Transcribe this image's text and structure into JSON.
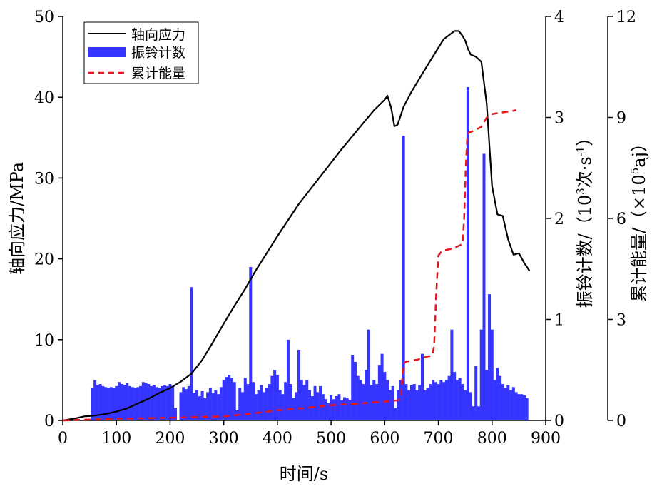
{
  "chart_data": {
    "type": "bar+line",
    "xlabel": "时间/s",
    "ylabel_left": "轴向应力/MPa",
    "ylabel_right1_main": "振铃计数/（10",
    "ylabel_right1_sup1": "3",
    "ylabel_right1_mid": "次·s",
    "ylabel_right1_sup2": "-1",
    "ylabel_right1_end": "）",
    "ylabel_right2_main": "累计能量/（×10",
    "ylabel_right2_sup": "5",
    "ylabel_right2_end": "aj）",
    "xlim": [
      0,
      900
    ],
    "ylim_left": [
      0,
      50
    ],
    "ylim_right1": [
      0,
      4
    ],
    "ylim_right2": [
      0,
      12
    ],
    "x_ticks": [
      "0",
      "100",
      "200",
      "300",
      "400",
      "500",
      "600",
      "700",
      "800",
      "900"
    ],
    "y_left_ticks": [
      "0",
      "10",
      "20",
      "30",
      "40",
      "50"
    ],
    "y_right1_ticks": [
      "0",
      "1",
      "2",
      "3",
      "4"
    ],
    "y_right2_ticks": [
      "0",
      "3",
      "6",
      "9",
      "12"
    ],
    "legend": {
      "position": "top-left",
      "entries": [
        {
          "label": "轴向应力",
          "style": "line",
          "color": "#000000"
        },
        {
          "label": "振铃计数",
          "style": "bar",
          "color": "#3535ff"
        },
        {
          "label": "累计能量",
          "style": "dashed",
          "color": "#e8141b"
        }
      ]
    },
    "colors": {
      "stress": "#000000",
      "bars": "#3535ff",
      "energy": "#e8141b"
    },
    "bar_width": 4,
    "series": [
      {
        "name": "轴向应力",
        "axis": "left",
        "x": [
          0,
          20,
          40,
          60,
          80,
          100,
          120,
          140,
          160,
          180,
          200,
          220,
          240,
          260,
          280,
          300,
          320,
          340,
          360,
          380,
          400,
          420,
          440,
          460,
          480,
          500,
          520,
          540,
          560,
          580,
          600,
          605,
          612,
          618,
          624,
          635,
          650,
          680,
          710,
          730,
          738,
          745,
          750,
          755,
          760,
          770,
          780,
          790,
          800,
          810,
          820,
          830,
          840,
          850,
          860,
          870
        ],
        "values": [
          0,
          0.2,
          0.5,
          0.6,
          0.8,
          1.1,
          1.5,
          2.1,
          2.7,
          3.4,
          4.0,
          4.8,
          5.8,
          7.5,
          9.7,
          12.0,
          14.2,
          16.3,
          18.6,
          20.7,
          22.8,
          24.8,
          26.8,
          28.5,
          30.2,
          31.9,
          33.6,
          35.2,
          36.8,
          38.4,
          39.7,
          40.2,
          38.7,
          36.4,
          36.6,
          38.8,
          40.7,
          44.0,
          47.2,
          48.2,
          48.2,
          47.6,
          47.0,
          46.0,
          45.3,
          45.0,
          44.4,
          39.2,
          29.0,
          25.5,
          25.3,
          22.4,
          20.5,
          20.7,
          19.5,
          18.5
        ]
      },
      {
        "name": "振铃计数",
        "axis": "right1",
        "x": [
          55,
          60,
          65,
          70,
          75,
          80,
          85,
          90,
          95,
          100,
          105,
          110,
          115,
          120,
          125,
          130,
          135,
          140,
          145,
          150,
          155,
          160,
          165,
          170,
          175,
          180,
          185,
          190,
          195,
          200,
          205,
          210,
          220,
          225,
          230,
          235,
          240,
          245,
          250,
          255,
          260,
          265,
          270,
          275,
          280,
          285,
          290,
          295,
          300,
          305,
          310,
          315,
          320,
          325,
          330,
          335,
          340,
          345,
          350,
          355,
          360,
          365,
          370,
          375,
          380,
          385,
          390,
          395,
          400,
          405,
          410,
          415,
          420,
          425,
          430,
          435,
          440,
          445,
          450,
          455,
          460,
          465,
          470,
          475,
          480,
          485,
          490,
          495,
          500,
          505,
          510,
          515,
          520,
          525,
          530,
          535,
          540,
          545,
          550,
          555,
          560,
          565,
          570,
          575,
          580,
          585,
          590,
          595,
          600,
          605,
          610,
          615,
          620,
          625,
          630,
          635,
          640,
          645,
          650,
          655,
          660,
          665,
          670,
          675,
          680,
          685,
          690,
          695,
          700,
          705,
          710,
          715,
          720,
          725,
          730,
          735,
          740,
          745,
          750,
          755,
          760,
          765,
          770,
          775,
          780,
          785,
          790,
          795,
          800,
          805,
          810,
          815,
          820,
          825,
          830,
          835,
          840,
          845,
          850,
          855,
          860,
          865
        ],
        "values": [
          0.32,
          0.4,
          0.35,
          0.36,
          0.34,
          0.33,
          0.32,
          0.33,
          0.32,
          0.34,
          0.38,
          0.36,
          0.35,
          0.37,
          0.34,
          0.33,
          0.32,
          0.33,
          0.34,
          0.38,
          0.37,
          0.36,
          0.34,
          0.35,
          0.33,
          0.32,
          0.34,
          0.35,
          0.34,
          0.36,
          0.34,
          0.12,
          0.28,
          0.33,
          0.31,
          0.34,
          1.32,
          0.27,
          0.3,
          0.24,
          0.29,
          0.22,
          0.28,
          0.32,
          0.27,
          0.3,
          0.26,
          0.33,
          0.4,
          0.43,
          0.45,
          0.42,
          0.38,
          0.1,
          0.32,
          0.28,
          0.42,
          0.36,
          1.52,
          0.38,
          0.26,
          0.3,
          0.35,
          0.28,
          0.32,
          0.36,
          0.44,
          0.5,
          0.45,
          0.3,
          0.26,
          0.38,
          0.8,
          0.36,
          0.22,
          0.28,
          0.7,
          0.4,
          0.35,
          0.4,
          0.3,
          0.24,
          0.34,
          0.28,
          0.34,
          0.26,
          0.21,
          0.17,
          0.25,
          0.21,
          0.24,
          0.26,
          0.2,
          0.23,
          0.22,
          0.2,
          0.65,
          0.58,
          0.44,
          0.4,
          0.36,
          0.5,
          0.9,
          0.35,
          0.4,
          0.36,
          0.55,
          0.66,
          0.48,
          0.4,
          0.3,
          0.34,
          0.12,
          0.3,
          0.4,
          2.82,
          0.36,
          0.3,
          0.35,
          0.36,
          0.3,
          0.35,
          0.66,
          0.3,
          0.32,
          0.36,
          0.4,
          0.38,
          0.36,
          0.4,
          0.38,
          0.4,
          0.44,
          0.9,
          0.48,
          0.4,
          0.42,
          0.36,
          0.3,
          3.3,
          0.28,
          0.14,
          0.54,
          0.14,
          0.9,
          2.64,
          0.5,
          1.25,
          0.9,
          0.4,
          0.52,
          0.44,
          0.36,
          0.32,
          0.35,
          0.3,
          0.33,
          0.28,
          0.26,
          0.26,
          0.25,
          0.22
        ]
      },
      {
        "name": "累计能量",
        "axis": "right2",
        "x": [
          0,
          100,
          200,
          300,
          350,
          400,
          450,
          500,
          550,
          600,
          625,
          630,
          633,
          636,
          640,
          645,
          650,
          660,
          670,
          680,
          688,
          692,
          696,
          700,
          705,
          710,
          725,
          740,
          745,
          748,
          751,
          754,
          757,
          765,
          780,
          790,
          800,
          820,
          840,
          845
        ],
        "values": [
          0,
          0.05,
          0.08,
          0.12,
          0.2,
          0.3,
          0.37,
          0.45,
          0.5,
          0.56,
          0.6,
          0.65,
          1.3,
          1.7,
          1.75,
          1.76,
          1.78,
          1.8,
          1.85,
          1.9,
          1.92,
          2.2,
          3.8,
          4.9,
          5.0,
          5.05,
          5.1,
          5.2,
          5.25,
          6.0,
          7.5,
          8.5,
          8.55,
          8.6,
          8.72,
          9.0,
          9.1,
          9.15,
          9.2,
          9.22
        ]
      }
    ]
  }
}
